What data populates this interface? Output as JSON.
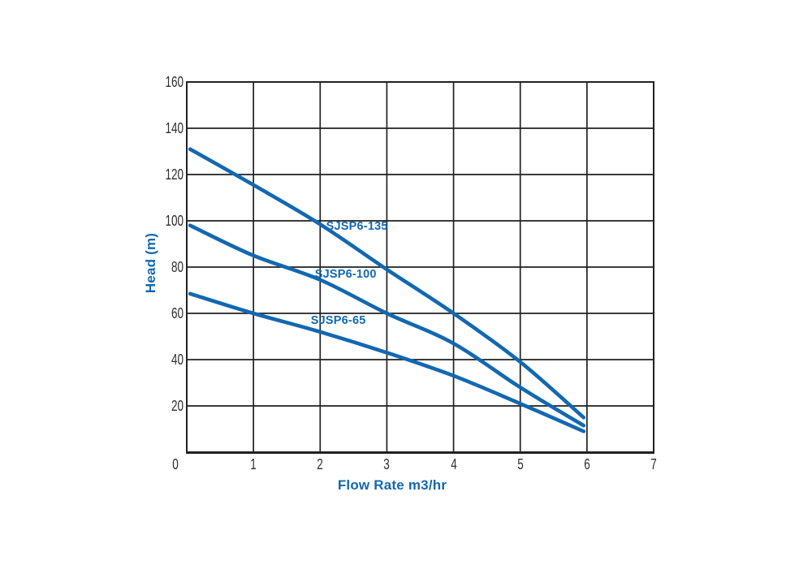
{
  "page": {
    "background": "#ffffff"
  },
  "chart_data": {
    "type": "line",
    "title": "",
    "xlabel": "Flow Rate m3/hr",
    "ylabel": "Head (m)",
    "xlim": [
      0,
      7
    ],
    "ylim": [
      0,
      160
    ],
    "xticks": [
      "0",
      "1",
      "2",
      "3",
      "4",
      "5",
      "6",
      "7"
    ],
    "yticks": [
      "20",
      "40",
      "60",
      "80",
      "100",
      "120",
      "140",
      "160"
    ],
    "grid": true,
    "legend_position": "inline-labels",
    "colors": {
      "curve": "#1268b1",
      "grid": "#212121",
      "tick_text": "#2e2e2e",
      "axis_title_text": "#1268b1"
    },
    "series": [
      {
        "name": "SJSP6-135",
        "color": "#1268b1",
        "points": [
          [
            0.05,
            131
          ],
          [
            1,
            115.5
          ],
          [
            2,
            98.5
          ],
          [
            3,
            79
          ],
          [
            4,
            60
          ],
          [
            5,
            39
          ],
          [
            5.95,
            15
          ]
        ],
        "label_anchor": {
          "x": 2.09,
          "head": 97.5
        }
      },
      {
        "name": "SJSP6-100",
        "color": "#1268b1",
        "points": [
          [
            0.05,
            98
          ],
          [
            1,
            85
          ],
          [
            2,
            74.5
          ],
          [
            3,
            60
          ],
          [
            4,
            47
          ],
          [
            5,
            28
          ],
          [
            5.95,
            11.5
          ]
        ],
        "label_anchor": {
          "x": 1.92,
          "head": 77
        }
      },
      {
        "name": "SJSP6-65",
        "color": "#1268b1",
        "points": [
          [
            0.05,
            68.5
          ],
          [
            1,
            60
          ],
          [
            2,
            52
          ],
          [
            3,
            43
          ],
          [
            4,
            33
          ],
          [
            5,
            21
          ],
          [
            5.95,
            9
          ]
        ],
        "label_anchor": {
          "x": 1.86,
          "head": 57
        }
      }
    ]
  }
}
